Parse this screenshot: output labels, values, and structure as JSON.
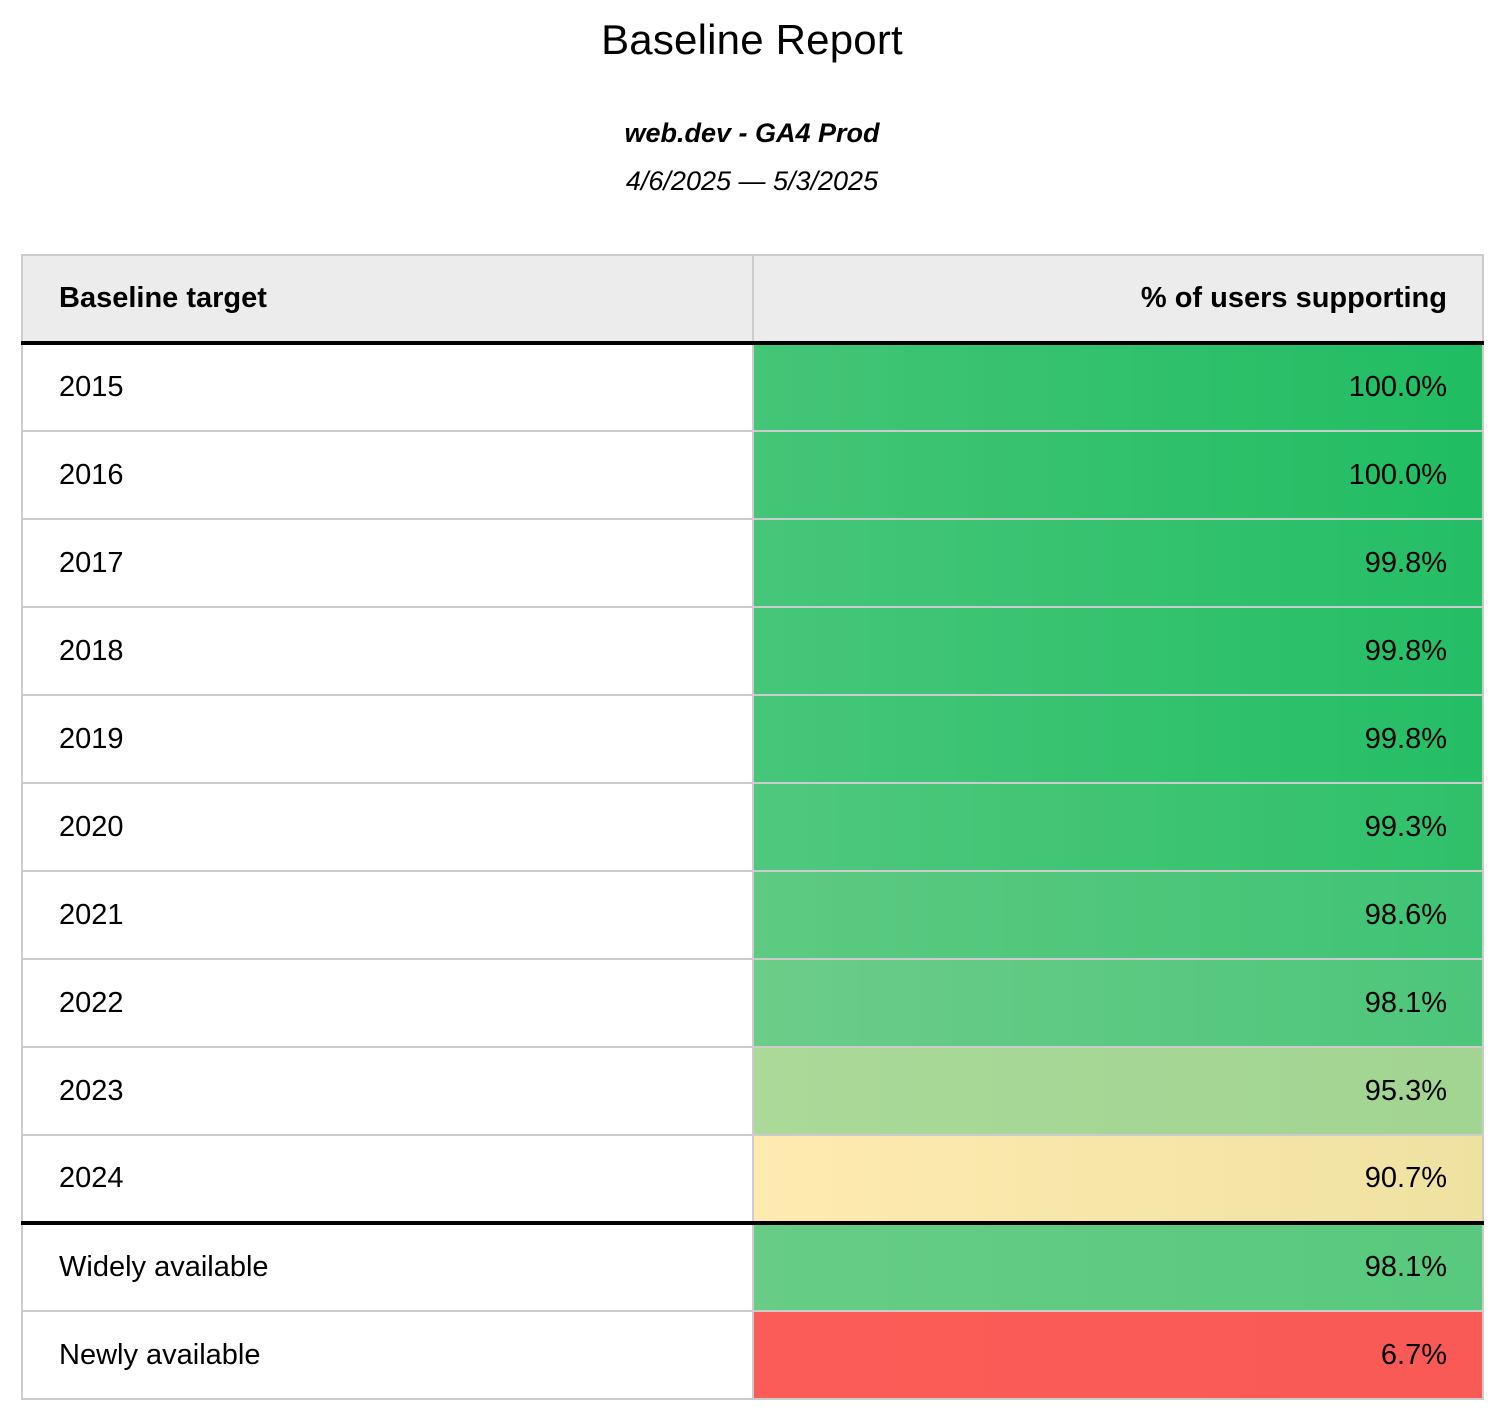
{
  "report": {
    "title": "Baseline Report",
    "source": "web.dev - GA4 Prod",
    "date_range": "4/6/2025 — 5/3/2025"
  },
  "table": {
    "columns": [
      "Baseline target",
      "% of users supporting"
    ],
    "rows": [
      {
        "target": "2015",
        "pct": "100.0%",
        "bg": [
          "#44c577",
          "#20bd62"
        ],
        "section_start": false
      },
      {
        "target": "2016",
        "pct": "100.0%",
        "bg": [
          "#44c577",
          "#20bd62"
        ],
        "section_start": false
      },
      {
        "target": "2017",
        "pct": "99.8%",
        "bg": [
          "#46c679",
          "#24be65"
        ],
        "section_start": false
      },
      {
        "target": "2018",
        "pct": "99.8%",
        "bg": [
          "#46c679",
          "#24be65"
        ],
        "section_start": false
      },
      {
        "target": "2019",
        "pct": "99.8%",
        "bg": [
          "#46c679",
          "#24be65"
        ],
        "section_start": false
      },
      {
        "target": "2020",
        "pct": "99.3%",
        "bg": [
          "#4fc87d",
          "#2fc06a"
        ],
        "section_start": false
      },
      {
        "target": "2021",
        "pct": "98.6%",
        "bg": [
          "#5eca82",
          "#3fc374"
        ],
        "section_start": false
      },
      {
        "target": "2022",
        "pct": "98.1%",
        "bg": [
          "#6ccc89",
          "#4cc67a"
        ],
        "section_start": false
      },
      {
        "target": "2023",
        "pct": "95.3%",
        "bg": [
          "#aad998",
          "#a2d492"
        ],
        "section_start": false
      },
      {
        "target": "2024",
        "pct": "90.7%",
        "bg": [
          "#ffeab0",
          "#efe2a1"
        ],
        "section_start": false
      },
      {
        "target": "Widely available",
        "pct": "98.1%",
        "bg": [
          "#66cc86",
          "#58c97e"
        ],
        "section_start": true
      },
      {
        "target": "Newly available",
        "pct": "6.7%",
        "bg": [
          "#fc5c57",
          "#fa5a55"
        ],
        "section_start": false
      }
    ],
    "colors": {
      "header_bg": "#ececec",
      "row_border": "#cccccc",
      "section_divider": "#000000"
    }
  },
  "chart_data": {
    "type": "table",
    "title": "Baseline Report",
    "subtitle": "web.dev - GA4 Prod",
    "date_range": "4/6/2025 — 5/3/2025",
    "columns": [
      "Baseline target",
      "% of users supporting"
    ],
    "categories": [
      "2015",
      "2016",
      "2017",
      "2018",
      "2019",
      "2020",
      "2021",
      "2022",
      "2023",
      "2024",
      "Widely available",
      "Newly available"
    ],
    "values": [
      100.0,
      100.0,
      99.8,
      99.8,
      99.8,
      99.3,
      98.6,
      98.1,
      95.3,
      90.7,
      98.1,
      6.7
    ],
    "value_unit": "%",
    "layout_hints": {
      "color_scale": "red-yellow-green heatmap on percentage column",
      "thick_divider_after_row": "2024",
      "value_alignment": "right"
    }
  }
}
